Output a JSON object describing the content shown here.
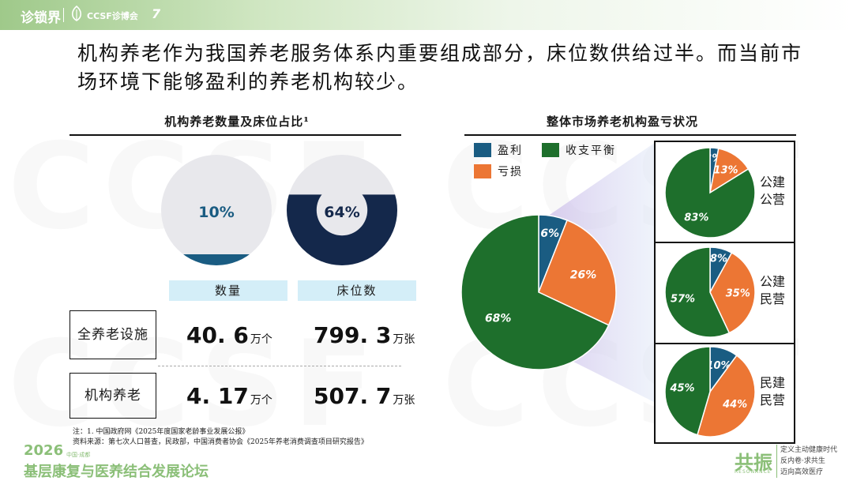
{
  "header": {
    "logo_left": "诊锁界",
    "logo_mid": "CCSF诊博会",
    "logo_right": "7"
  },
  "watermark": "CCSF",
  "headline": "机构养老作为我国养老服务体系内重要组成部分，床位数供给过半。而当前市场环境下能够盈利的养老机构较少。",
  "left": {
    "title": "机构养老数量及床位占比¹",
    "columns": [
      "数量",
      "床位数"
    ],
    "rows": [
      {
        "label": "全养老设施",
        "count": "40. 6",
        "count_unit": "万个",
        "beds": "799. 3",
        "beds_unit": "万张"
      },
      {
        "label": "机构养老",
        "count": "4. 17",
        "count_unit": "万个",
        "beds": "507. 7",
        "beds_unit": "万张"
      }
    ]
  },
  "right": {
    "title": "整体市场养老机构盈亏状况",
    "legend": [
      "盈利",
      "收支平衡",
      "亏损"
    ],
    "sub_labels": [
      [
        "公",
        "建",
        "公",
        "营"
      ],
      [
        "公",
        "建",
        "民",
        "营"
      ],
      [
        "民",
        "建",
        "民",
        "营"
      ]
    ]
  },
  "colors": {
    "profit": "#1a5c82",
    "balance": "#1e6f2c",
    "loss": "#ec7634",
    "navy": "#14284b",
    "light": "#e8e8ec",
    "header_bg": "#d4eef8"
  },
  "chart_data": [
    {
      "type": "pie",
      "title": "机构养老数量及床位占比¹",
      "categories": [
        "数量"
      ],
      "values": [
        10
      ],
      "labels": [
        "10%"
      ]
    },
    {
      "type": "pie",
      "categories": [
        "床位数"
      ],
      "values": [
        64
      ],
      "labels": [
        "64%"
      ]
    },
    {
      "type": "pie",
      "title": "整体市场养老机构盈亏状况",
      "categories": [
        "盈利",
        "亏损",
        "收支平衡"
      ],
      "values": [
        6,
        26,
        68
      ],
      "labels": [
        "6%",
        "26%",
        "68%"
      ]
    },
    {
      "type": "pie",
      "categories": [
        "盈利",
        "亏损",
        "收支平衡"
      ],
      "values": [
        3,
        13,
        83
      ],
      "labels": [
        "3%",
        "13%",
        "83%"
      ]
    },
    {
      "type": "pie",
      "categories": [
        "盈利",
        "亏损",
        "收支平衡"
      ],
      "values": [
        8,
        35,
        57
      ],
      "labels": [
        "8%",
        "35%",
        "57%"
      ]
    },
    {
      "type": "pie",
      "categories": [
        "盈利",
        "亏损",
        "收支平衡"
      ],
      "values": [
        10,
        44,
        45
      ],
      "labels": [
        "10%",
        "44%",
        "45%"
      ]
    }
  ],
  "notes": [
    "注：1. 中国政府网《2025年度国家老龄事业发展公报》",
    "资料来源：第七次人口普查，民政部，中国消费者协会《2025年养老消费调查项目研究报告》"
  ],
  "footer": {
    "year": "2026",
    "year_sub": "中国·成都",
    "title": "基层康复与医养结合发展论坛",
    "logo": "共振",
    "logo_sub": "RESONANCE",
    "slogan": [
      "定义主动健康时代",
      "反内卷·求共生",
      "迈向高效医疗"
    ]
  }
}
